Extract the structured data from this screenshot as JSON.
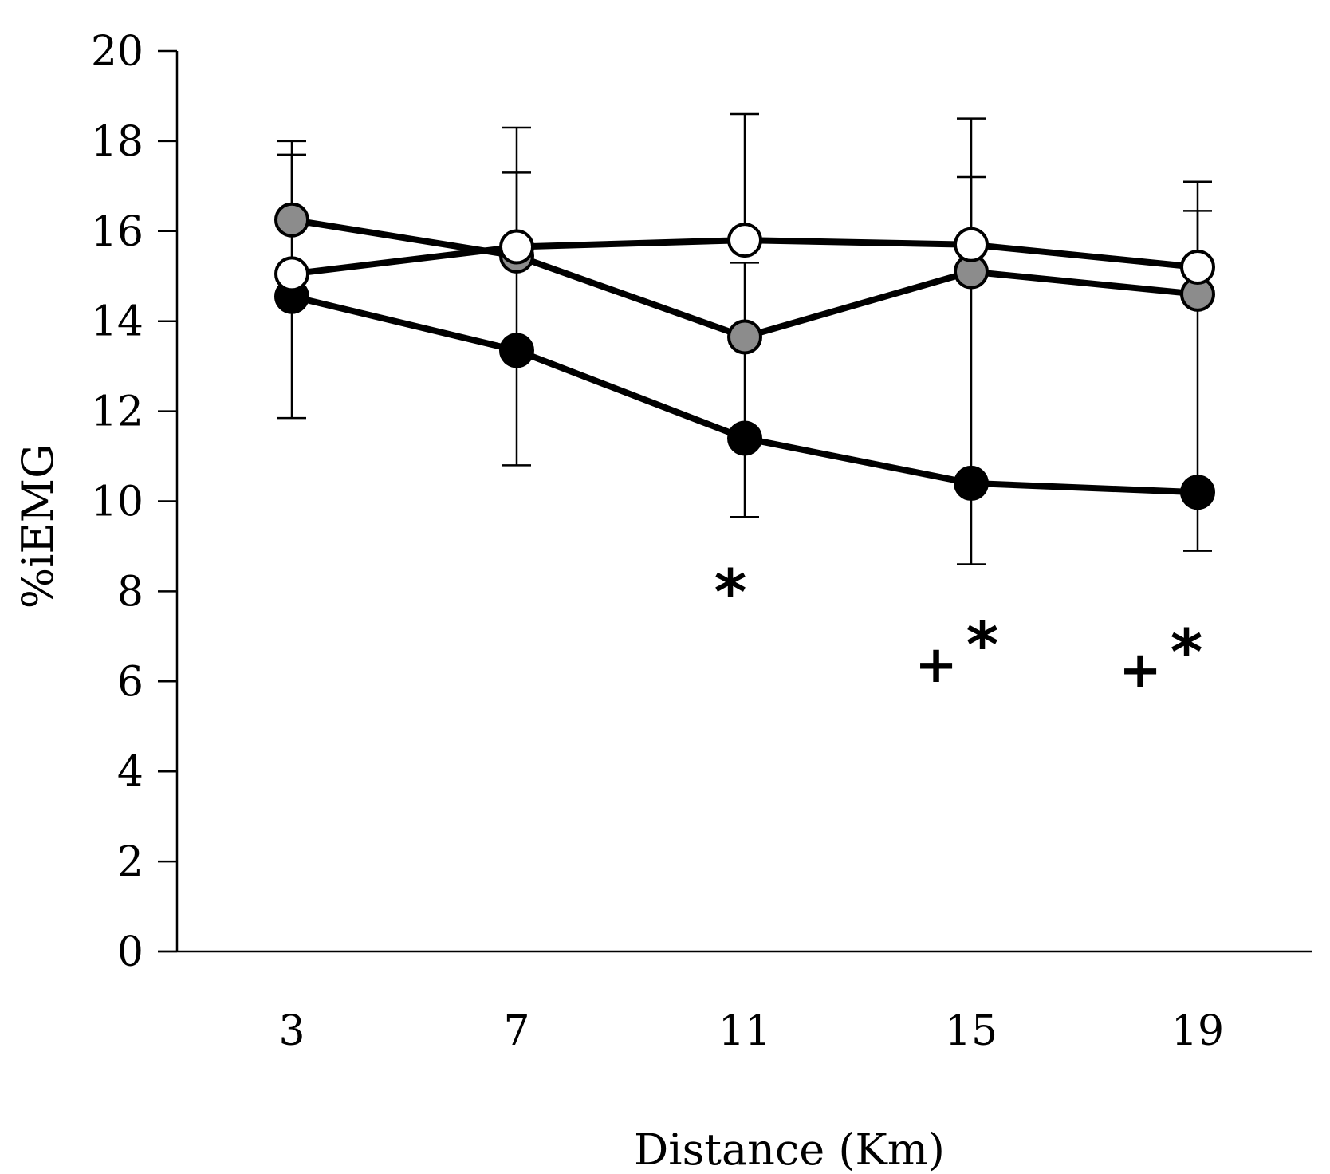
{
  "chart_data": {
    "type": "line",
    "title": "",
    "xlabel": "Distance (Km)",
    "ylabel": "%iEMG",
    "x": [
      3,
      7,
      11,
      15,
      19
    ],
    "ylim": [
      0,
      20
    ],
    "yticks": [
      0,
      2,
      4,
      6,
      8,
      10,
      12,
      14,
      16,
      18,
      20
    ],
    "grid": false,
    "legend": "none",
    "series": [
      {
        "name": "black-filled",
        "marker_color": "#000000",
        "values": [
          14.55,
          13.35,
          11.4,
          10.4,
          10.2
        ],
        "error_upper": [
          18.0,
          17.3,
          15.3,
          17.2,
          16.45
        ],
        "error_lower": [
          11.85,
          10.8,
          9.65,
          8.6,
          8.9
        ]
      },
      {
        "name": "grey-filled",
        "marker_color": "#8c8c8c",
        "values": [
          16.25,
          15.45,
          13.65,
          15.1,
          14.6
        ],
        "error_upper": [
          17.7,
          null,
          null,
          null,
          null
        ],
        "error_lower": [
          null,
          null,
          null,
          null,
          null
        ]
      },
      {
        "name": "white-open",
        "marker_color": "#ffffff",
        "values": [
          15.05,
          15.65,
          15.8,
          15.7,
          15.2
        ],
        "error_upper": [
          null,
          18.3,
          18.6,
          18.5,
          17.1
        ],
        "error_lower": [
          null,
          null,
          null,
          null,
          null
        ]
      }
    ],
    "annotations": [
      {
        "x": 11,
        "text": "*"
      },
      {
        "x": 15,
        "text": "+*"
      },
      {
        "x": 19,
        "text": "+*"
      }
    ]
  }
}
